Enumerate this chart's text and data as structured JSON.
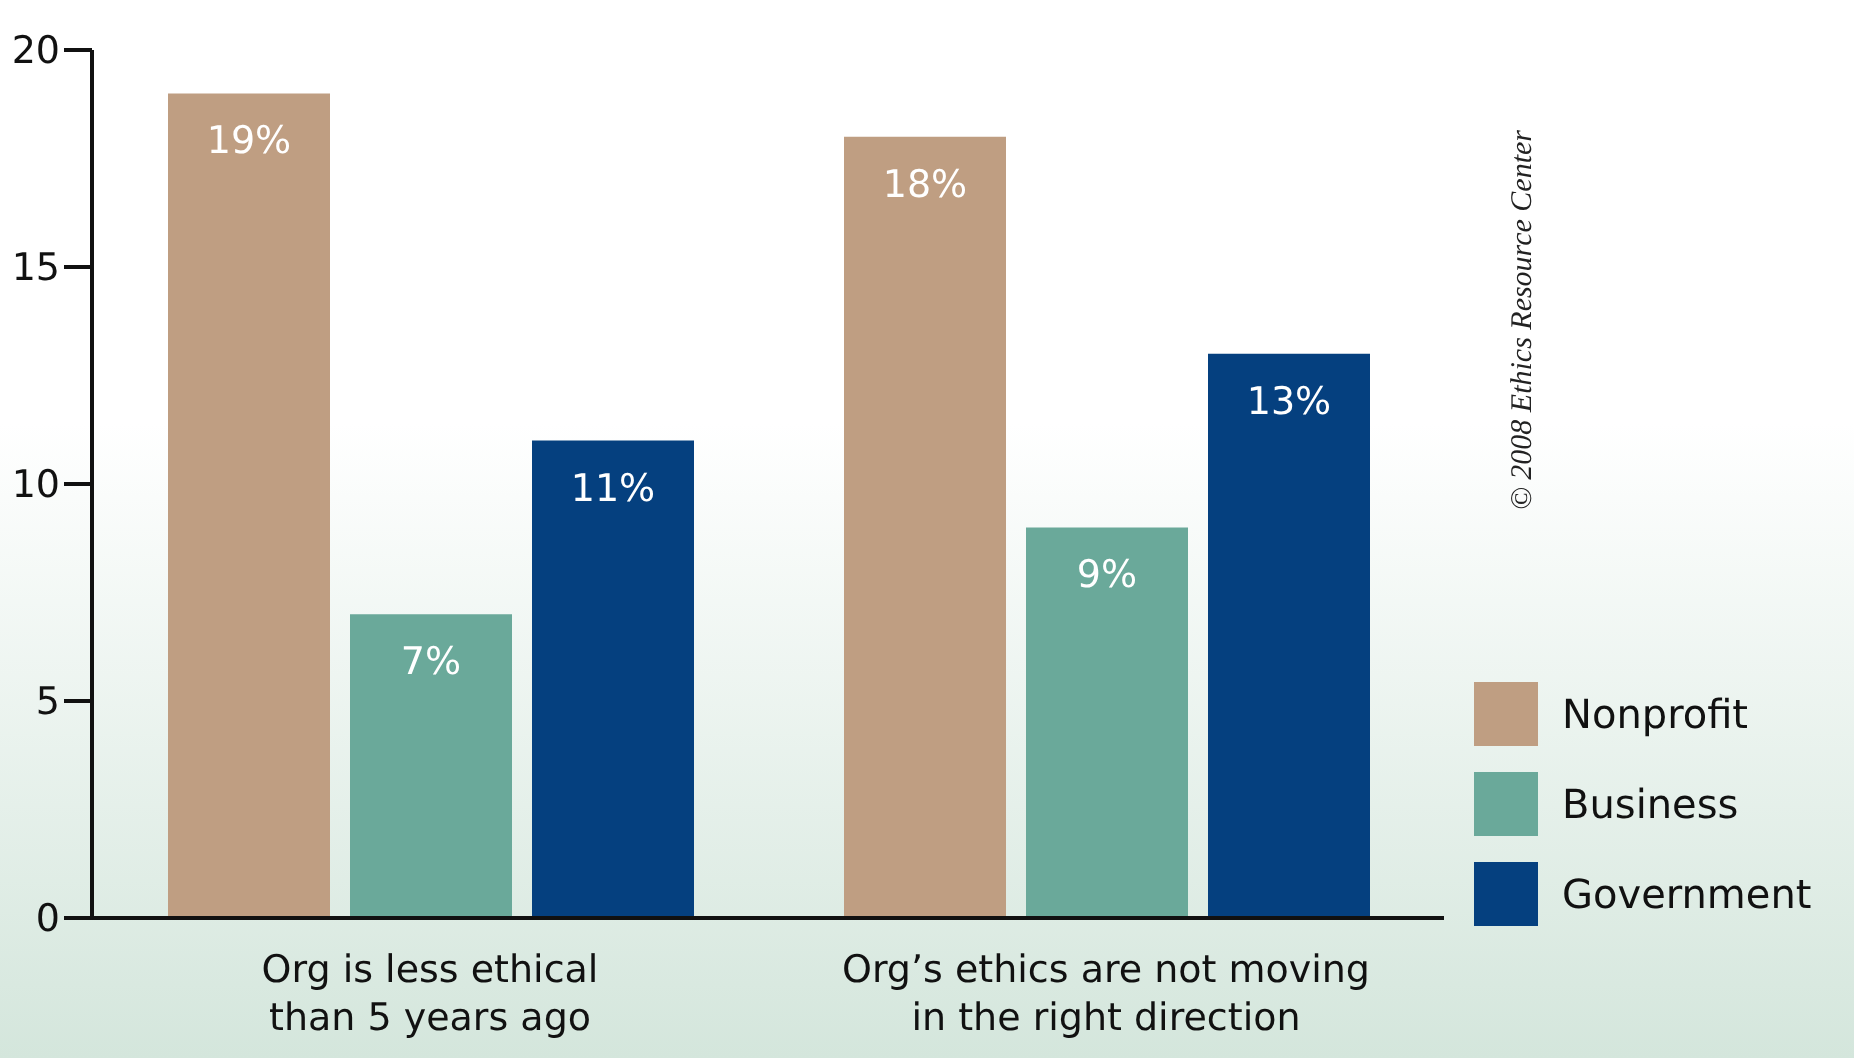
{
  "chart_data": {
    "type": "bar",
    "categories": [
      "Org is less ethical than 5 years ago",
      "Org’s ethics are not moving in the right direction"
    ],
    "series": [
      {
        "name": "Nonprofit",
        "color": "#bf9e82",
        "values": [
          19,
          18
        ],
        "value_labels": [
          "19%",
          "18%"
        ]
      },
      {
        "name": "Business",
        "color": "#6aa99a",
        "values": [
          7,
          9
        ],
        "value_labels": [
          "7%",
          "9%"
        ]
      },
      {
        "name": "Government",
        "color": "#05407f",
        "values": [
          11,
          13
        ],
        "value_labels": [
          "11%",
          "13%"
        ]
      }
    ],
    "ylim": [
      0,
      20
    ],
    "yticks": [
      0,
      5,
      10,
      15,
      20
    ],
    "grid": false,
    "legend": "bottom right",
    "annotations": [
      "© 2008 Ethics Resource Center"
    ]
  }
}
